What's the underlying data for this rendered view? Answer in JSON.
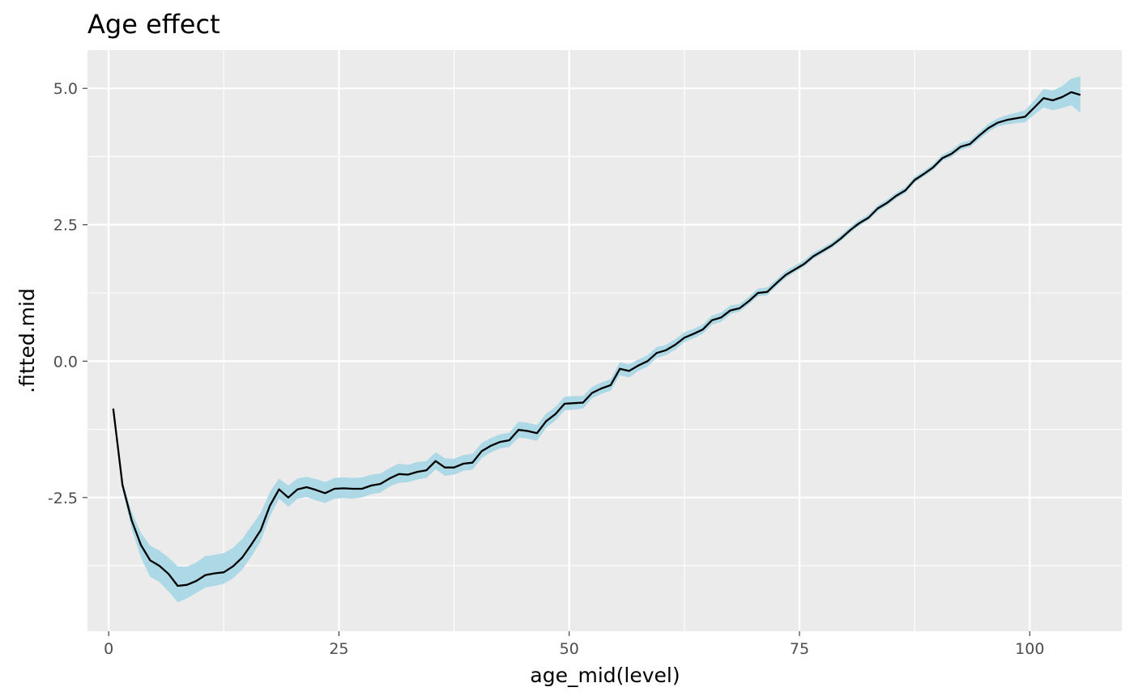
{
  "chart_data": {
    "type": "line",
    "title": "Age effect",
    "xlabel": "age_mid(level)",
    "ylabel": ".fitted.mid",
    "xlim": [
      -2.3,
      110
    ],
    "ylim": [
      -4.95,
      5.7
    ],
    "x_ticks": [
      0,
      25,
      50,
      75,
      100
    ],
    "x_tick_labels": [
      "0",
      "25",
      "50",
      "75",
      "100"
    ],
    "y_ticks": [
      -2.5,
      0,
      2.5,
      5
    ],
    "y_tick_labels": [
      "-2.5",
      "0.0",
      "2.5",
      "5.0"
    ],
    "grid": true,
    "legend": "none",
    "colors": {
      "panel": "#ebebeb",
      "grid": "#ffffff",
      "ribbon": "#add8e6",
      "line": "#000000"
    },
    "series": [
      {
        "x": [
          0.5,
          1.5,
          2.5,
          3.5,
          4.5,
          5.5,
          6.5,
          7.5,
          8.5,
          9.5,
          10.5,
          11.5,
          12.5,
          13.5,
          14.5,
          15.5,
          16.5,
          17.5,
          18.5,
          19.5,
          20.5,
          21.5,
          22.5,
          23.5,
          24.5,
          25.5,
          26.5,
          27.5,
          28.5,
          29.5,
          30.5,
          31.5,
          32.5,
          33.5,
          34.5,
          35.5,
          36.5,
          37.5,
          38.5,
          39.5,
          40.5,
          41.5,
          42.5,
          43.5,
          44.5,
          45.5,
          46.5,
          47.5,
          48.5,
          49.5,
          50.5,
          51.5,
          52.5,
          53.5,
          54.5,
          55.5,
          56.5,
          57.5,
          58.5,
          59.5,
          60.5,
          61.5,
          62.5,
          63.5,
          64.5,
          65.5,
          66.5,
          67.5,
          68.5,
          69.5,
          70.5,
          71.5,
          72.5,
          73.5,
          74.5,
          75.5,
          76.5,
          77.5,
          78.5,
          79.5,
          80.5,
          81.5,
          82.5,
          83.5,
          84.5,
          85.5,
          86.5,
          87.5,
          88.5,
          89.5,
          90.5,
          91.5,
          92.5,
          93.5,
          94.5,
          95.5,
          96.5,
          97.5,
          98.5,
          99.5,
          100.5,
          101.5,
          102.5,
          103.5,
          104.5,
          105.5
        ],
        "y": [
          -0.87,
          -2.27,
          -2.92,
          -3.37,
          -3.65,
          -3.75,
          -3.9,
          -4.12,
          -4.1,
          -4.03,
          -3.92,
          -3.89,
          -3.87,
          -3.76,
          -3.6,
          -3.36,
          -3.1,
          -2.65,
          -2.35,
          -2.5,
          -2.35,
          -2.31,
          -2.36,
          -2.42,
          -2.34,
          -2.33,
          -2.34,
          -2.34,
          -2.28,
          -2.25,
          -2.15,
          -2.07,
          -2.08,
          -2.03,
          -2.0,
          -1.83,
          -1.95,
          -1.95,
          -1.88,
          -1.86,
          -1.65,
          -1.55,
          -1.48,
          -1.45,
          -1.26,
          -1.28,
          -1.32,
          -1.1,
          -0.97,
          -0.78,
          -0.77,
          -0.76,
          -0.58,
          -0.5,
          -0.44,
          -0.14,
          -0.18,
          -0.08,
          0.0,
          0.15,
          0.2,
          0.3,
          0.43,
          0.5,
          0.58,
          0.75,
          0.8,
          0.93,
          0.97,
          1.1,
          1.25,
          1.27,
          1.43,
          1.58,
          1.68,
          1.78,
          1.92,
          2.02,
          2.12,
          2.25,
          2.4,
          2.53,
          2.63,
          2.8,
          2.9,
          3.03,
          3.13,
          3.32,
          3.43,
          3.55,
          3.72,
          3.8,
          3.93,
          3.98,
          4.13,
          4.27,
          4.37,
          4.42,
          4.45,
          4.48,
          4.65,
          4.82,
          4.78,
          4.84,
          4.93,
          4.88
        ],
        "lower": [
          -0.87,
          -2.35,
          -3.08,
          -3.6,
          -3.95,
          -4.05,
          -4.22,
          -4.42,
          -4.35,
          -4.25,
          -4.15,
          -4.12,
          -4.08,
          -3.98,
          -3.82,
          -3.58,
          -3.3,
          -2.85,
          -2.52,
          -2.67,
          -2.52,
          -2.49,
          -2.55,
          -2.6,
          -2.52,
          -2.51,
          -2.52,
          -2.5,
          -2.44,
          -2.41,
          -2.3,
          -2.23,
          -2.22,
          -2.17,
          -2.14,
          -1.98,
          -2.1,
          -2.08,
          -2.01,
          -1.99,
          -1.78,
          -1.67,
          -1.6,
          -1.57,
          -1.4,
          -1.42,
          -1.46,
          -1.22,
          -1.09,
          -0.9,
          -0.89,
          -0.87,
          -0.68,
          -0.6,
          -0.54,
          -0.26,
          -0.3,
          -0.18,
          -0.1,
          0.06,
          0.11,
          0.21,
          0.35,
          0.42,
          0.5,
          0.67,
          0.72,
          0.86,
          0.91,
          1.04,
          1.19,
          1.21,
          1.37,
          1.52,
          1.63,
          1.73,
          1.87,
          1.97,
          2.07,
          2.2,
          2.35,
          2.48,
          2.58,
          2.75,
          2.85,
          2.98,
          3.08,
          3.27,
          3.38,
          3.5,
          3.67,
          3.74,
          3.87,
          3.92,
          4.06,
          4.2,
          4.3,
          4.34,
          4.36,
          4.38,
          4.52,
          4.65,
          4.6,
          4.64,
          4.69,
          4.55
        ],
        "upper": [
          -0.87,
          -2.2,
          -2.76,
          -3.15,
          -3.38,
          -3.47,
          -3.6,
          -3.76,
          -3.77,
          -3.69,
          -3.57,
          -3.55,
          -3.52,
          -3.42,
          -3.26,
          -3.02,
          -2.78,
          -2.4,
          -2.15,
          -2.28,
          -2.15,
          -2.12,
          -2.16,
          -2.22,
          -2.14,
          -2.13,
          -2.14,
          -2.13,
          -2.08,
          -2.06,
          -1.96,
          -1.88,
          -1.9,
          -1.85,
          -1.83,
          -1.67,
          -1.78,
          -1.79,
          -1.72,
          -1.7,
          -1.5,
          -1.41,
          -1.34,
          -1.31,
          -1.11,
          -1.13,
          -1.17,
          -0.96,
          -0.84,
          -0.65,
          -0.64,
          -0.64,
          -0.47,
          -0.39,
          -0.33,
          -0.02,
          -0.06,
          0.03,
          0.11,
          0.26,
          0.3,
          0.4,
          0.53,
          0.59,
          0.67,
          0.84,
          0.89,
          1.02,
          1.05,
          1.18,
          1.33,
          1.35,
          1.5,
          1.65,
          1.75,
          1.85,
          1.99,
          2.08,
          2.18,
          2.31,
          2.46,
          2.59,
          2.69,
          2.86,
          2.96,
          3.09,
          3.19,
          3.38,
          3.49,
          3.61,
          3.78,
          3.87,
          4.0,
          4.05,
          4.2,
          4.35,
          4.45,
          4.51,
          4.55,
          4.6,
          4.78,
          4.99,
          4.96,
          5.04,
          5.18,
          5.22
        ]
      }
    ]
  }
}
